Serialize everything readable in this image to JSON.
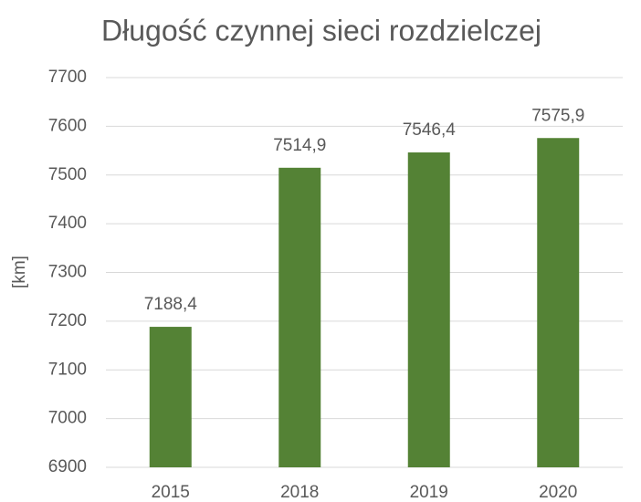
{
  "chart_data": {
    "type": "bar",
    "title": "Długość czynnej sieci rozdzielczej",
    "y_label": "[km]",
    "categories": [
      "2015",
      "2018",
      "2019",
      "2020"
    ],
    "values": [
      7188.4,
      7514.9,
      7546.4,
      7575.9
    ],
    "value_labels": [
      "7188,4",
      "7514,9",
      "7546,4",
      "7575,9"
    ],
    "color": "#548235",
    "ylim": [
      6900,
      7700
    ],
    "yticks": [
      6900,
      7000,
      7100,
      7200,
      7300,
      7400,
      7500,
      7600,
      7700
    ],
    "grid": true
  }
}
